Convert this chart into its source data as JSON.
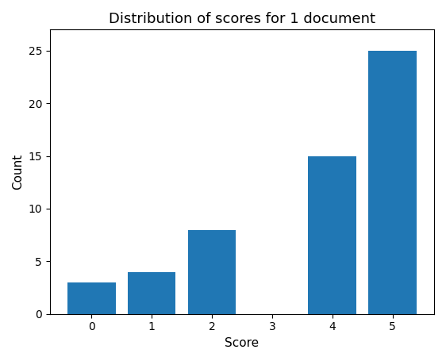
{
  "title": "Distribution of scores for 1 document",
  "xlabel": "Score",
  "ylabel": "Count",
  "scores": [
    0,
    1,
    2,
    3,
    4,
    5
  ],
  "counts": [
    3,
    4,
    8,
    0,
    15,
    25
  ],
  "bar_color": "#2077b4",
  "bar_width": 0.8,
  "ylim": [
    0,
    27
  ],
  "yticks": [
    0,
    5,
    10,
    15,
    20,
    25
  ],
  "title_fontsize": 13,
  "label_fontsize": 11,
  "tick_fontsize": 10
}
